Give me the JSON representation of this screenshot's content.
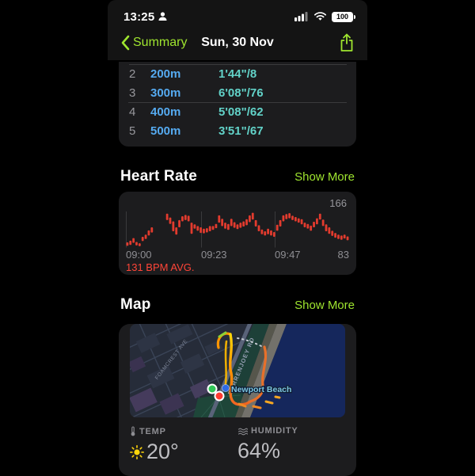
{
  "colors": {
    "accent_green": "#9FE52F",
    "distance_blue": "#55AAF0",
    "pace_teal": "#62D2C8",
    "bar_red": "#E23B2E",
    "avg_red": "#FF4538",
    "sun_yellow": "#FFD60A",
    "card_bg": "#1C1C1E",
    "ocean_blue": "#15275C"
  },
  "status_bar": {
    "time": "13:25",
    "battery": "100"
  },
  "nav": {
    "back_label": "Summary",
    "title": "Sun, 30 Nov"
  },
  "splits": {
    "rows": [
      {
        "index": "2",
        "distance": "200m",
        "pace": "1'44\"/8"
      },
      {
        "index": "3",
        "distance": "300m",
        "pace": "6'08\"/76"
      },
      {
        "index": "4",
        "distance": "400m",
        "pace": "5'08\"/62"
      },
      {
        "index": "5",
        "distance": "500m",
        "pace": "3'51\"/67"
      }
    ]
  },
  "heart_rate": {
    "title": "Heart Rate",
    "action": "Show More",
    "max": "166",
    "min": "83",
    "avg": "131 BPM AVG.",
    "x_labels": [
      "09:00",
      "09:23",
      "09:47"
    ]
  },
  "chart_data": {
    "type": "bar",
    "title": "Heart Rate",
    "ylabel": "BPM",
    "ylim": [
      83,
      166
    ],
    "x_labels": [
      "09:00",
      "09:23",
      "09:47"
    ],
    "max_bpm": 166,
    "min_bpm": 83,
    "avg_bpm": 131,
    "bar_color": "#E23B2E",
    "bars": [
      [
        86,
        94
      ],
      [
        88,
        98
      ],
      [
        93,
        104
      ],
      [
        87,
        95
      ],
      [
        85,
        92
      ],
      [
        97,
        107
      ],
      [
        102,
        112
      ],
      [
        110,
        122
      ],
      [
        117,
        129
      ],
      null,
      null,
      null,
      null,
      [
        146,
        161
      ],
      [
        137,
        152
      ],
      [
        120,
        143
      ],
      [
        112,
        129
      ],
      [
        129,
        146
      ],
      [
        143,
        155
      ],
      [
        146,
        158
      ],
      [
        143,
        156
      ],
      [
        114,
        140
      ],
      [
        126,
        136
      ],
      [
        121,
        132
      ],
      [
        116,
        129
      ],
      [
        115,
        126
      ],
      [
        117,
        127
      ],
      [
        120,
        132
      ],
      [
        123,
        132
      ],
      [
        127,
        137
      ],
      [
        140,
        157
      ],
      [
        132,
        149
      ],
      [
        126,
        140
      ],
      [
        123,
        137
      ],
      [
        132,
        149
      ],
      [
        128,
        141
      ],
      [
        125,
        136
      ],
      [
        128,
        140
      ],
      [
        131,
        143
      ],
      [
        134,
        148
      ],
      [
        141,
        157
      ],
      [
        147,
        163
      ],
      [
        131,
        146
      ],
      [
        120,
        134
      ],
      [
        113,
        124
      ],
      [
        110,
        120
      ],
      [
        113,
        126
      ],
      [
        110,
        122
      ],
      [
        107,
        118
      ],
      [
        121,
        135
      ],
      [
        131,
        146
      ],
      [
        143,
        157
      ],
      [
        148,
        160
      ],
      [
        150,
        162
      ],
      [
        146,
        156
      ],
      [
        143,
        153
      ],
      [
        140,
        150
      ],
      [
        136,
        148
      ],
      [
        129,
        140
      ],
      [
        126,
        137
      ],
      [
        121,
        133
      ],
      [
        129,
        142
      ],
      [
        136,
        150
      ],
      [
        147,
        161
      ],
      [
        132,
        147
      ],
      [
        120,
        136
      ],
      [
        114,
        129
      ],
      [
        109,
        121
      ],
      [
        105,
        116
      ],
      [
        102,
        112
      ],
      [
        100,
        110
      ],
      [
        103,
        112
      ],
      [
        99,
        108
      ]
    ]
  },
  "map": {
    "title": "Map",
    "action": "Show More",
    "place_label": "Newport Beach",
    "street_1": "BARRENJOEY RD",
    "street_2": "FOAMCREST AVE",
    "temp_label": "TEMP",
    "temp_value": "20°",
    "humidity_label": "HUMIDITY",
    "humidity_value": "64%"
  }
}
